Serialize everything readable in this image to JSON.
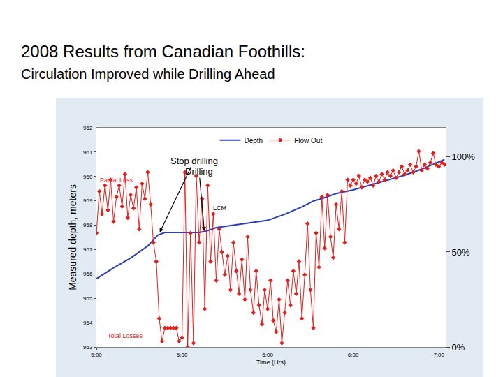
{
  "chart_data": {
    "type": "line",
    "title": "2008 Results from Canadian Foothills:",
    "subtitle": "Circulation Improved while Drilling Ahead",
    "x_label": "Time (Hrs)",
    "y_label": "Measured depth, meters",
    "xlim": [
      5,
      7.04
    ],
    "xticks": [
      {
        "value": 5,
        "label": "5:00"
      },
      {
        "value": 5.5,
        "label": "5:30"
      },
      {
        "value": 6,
        "label": "6:00"
      },
      {
        "value": 6.5,
        "label": "6:30"
      },
      {
        "value": 7,
        "label": "7:00"
      }
    ],
    "ylim": [
      953,
      962
    ],
    "yticks": [
      953,
      954,
      955,
      956,
      957,
      958,
      959,
      960,
      961,
      962
    ],
    "y2lim": [
      0,
      115.4
    ],
    "y2ticks": [
      {
        "value": 0,
        "label": "0%"
      },
      {
        "value": 50,
        "label": "50%"
      },
      {
        "value": 100,
        "label": "100%"
      }
    ],
    "grid": false,
    "legend": "top",
    "series": [
      {
        "name": "Depth",
        "color": "#2a3fbf",
        "type": "line",
        "line_style": "solid",
        "x": [
          5,
          5.1,
          5.2,
          5.3,
          5.36,
          5.4,
          5.5,
          5.6,
          5.64,
          5.7,
          5.8,
          5.9,
          6,
          6.1,
          6.2,
          6.27,
          6.32,
          6.4,
          6.5,
          6.6,
          6.7,
          6.8,
          6.9,
          7,
          7.033
        ],
        "values": [
          955.8,
          956.25,
          956.65,
          957.15,
          957.6,
          957.7,
          957.7,
          957.7,
          957.75,
          957.9,
          958.0,
          958.1,
          958.2,
          958.45,
          958.75,
          959.0,
          959.1,
          959.3,
          959.45,
          959.65,
          959.85,
          960.05,
          960.3,
          960.6,
          960.7
        ]
      },
      {
        "name": "Flow Out",
        "color": "#e0201c",
        "type": "line",
        "line_style": "solid",
        "marker": "diamond",
        "axis": "y2",
        "x": [
          5,
          5.017,
          5.033,
          5.05,
          5.067,
          5.083,
          5.1,
          5.117,
          5.133,
          5.15,
          5.167,
          5.183,
          5.2,
          5.217,
          5.233,
          5.25,
          5.267,
          5.283,
          5.3,
          5.317,
          5.333,
          5.35,
          5.367,
          5.383,
          5.4,
          5.417,
          5.433,
          5.45,
          5.467,
          5.483,
          5.5,
          5.517,
          5.533,
          5.55,
          5.567,
          5.583,
          5.6,
          5.617,
          5.633,
          5.65,
          5.667,
          5.683,
          5.7,
          5.717,
          5.733,
          5.75,
          5.767,
          5.783,
          5.8,
          5.817,
          5.833,
          5.85,
          5.867,
          5.883,
          5.9,
          5.917,
          5.933,
          5.95,
          5.967,
          5.983,
          6,
          6.017,
          6.033,
          6.05,
          6.067,
          6.083,
          6.1,
          6.117,
          6.133,
          6.15,
          6.167,
          6.183,
          6.2,
          6.217,
          6.233,
          6.25,
          6.267,
          6.283,
          6.3,
          6.317,
          6.333,
          6.35,
          6.367,
          6.383,
          6.4,
          6.417,
          6.433,
          6.45,
          6.467,
          6.483,
          6.5,
          6.517,
          6.533,
          6.55,
          6.567,
          6.583,
          6.6,
          6.617,
          6.633,
          6.65,
          6.667,
          6.683,
          6.7,
          6.717,
          6.733,
          6.75,
          6.767,
          6.783,
          6.8,
          6.817,
          6.833,
          6.85,
          6.867,
          6.883,
          6.9,
          6.917,
          6.933,
          6.95,
          6.967,
          6.983,
          7,
          7.017,
          7.033
        ],
        "values": [
          60,
          82,
          70,
          85,
          72,
          88,
          66,
          79,
          85,
          74,
          91,
          68,
          80,
          73,
          84,
          62,
          86,
          78,
          92,
          75,
          55,
          45,
          15,
          3,
          10,
          10,
          10,
          10,
          10,
          3,
          5,
          92,
          0,
          60,
          2,
          90,
          55,
          78,
          20,
          85,
          45,
          70,
          35,
          62,
          50,
          38,
          48,
          30,
          55,
          40,
          28,
          46,
          25,
          58,
          30,
          18,
          40,
          22,
          12,
          30,
          20,
          35,
          14,
          8,
          25,
          2,
          18,
          35,
          22,
          40,
          28,
          45,
          15,
          38,
          65,
          30,
          10,
          60,
          42,
          79,
          52,
          80,
          58,
          47,
          75,
          62,
          82,
          55,
          88,
          85,
          88,
          86,
          90,
          84,
          88,
          87,
          89,
          85,
          90,
          87,
          91,
          88,
          92,
          90,
          93,
          89,
          92,
          95,
          91,
          93,
          96,
          92,
          95,
          103,
          93,
          96,
          94,
          97,
          102,
          96,
          95,
          97,
          96
        ]
      }
    ],
    "annotations": [
      {
        "text": "Partial Loss",
        "x": 5.12,
        "y": 959.85,
        "color": "#e0201c"
      },
      {
        "text": "Total Losses",
        "x": 5.17,
        "y": 953.45,
        "color": "#e0201c"
      },
      {
        "text": "LCM",
        "x": 5.72,
        "y": 958.7,
        "color": "#000000"
      },
      {
        "text": "Stop drilling",
        "x": 5.57,
        "y": 960.65,
        "color": "#000000",
        "arrow_to": {
          "x": 5.37,
          "y": 957.7
        }
      },
      {
        "text": "Drilling",
        "x": 5.6,
        "y": 960.2,
        "color": "#000000",
        "arrow_to": {
          "x": 5.63,
          "y": 957.75
        }
      }
    ]
  }
}
